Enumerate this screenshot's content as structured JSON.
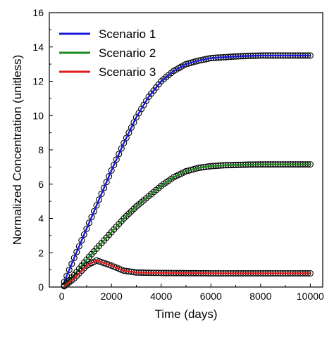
{
  "chart_data": {
    "type": "line",
    "xlabel": "Time (days)",
    "ylabel": "Normalized Concentration (unitless)",
    "xlim": [
      -500,
      10500
    ],
    "ylim": [
      0,
      16
    ],
    "xticks": [
      0,
      2000,
      4000,
      6000,
      8000,
      10000
    ],
    "yticks": [
      0,
      2,
      4,
      6,
      8,
      10,
      12,
      14,
      16
    ],
    "grid": false,
    "legend_position": "top-left",
    "marker": "open-circle",
    "marker_color": "#000000",
    "series": [
      {
        "name": "Scenario 1",
        "color": "#1a1adb",
        "x": [
          100,
          500,
          1000,
          1500,
          2000,
          2500,
          3000,
          3500,
          4000,
          4500,
          5000,
          5500,
          6000,
          6500,
          7000,
          7500,
          8000,
          8500,
          9000,
          9500,
          10000
        ],
        "values": [
          0.3,
          1.7,
          3.4,
          5.1,
          6.8,
          8.4,
          9.9,
          11.1,
          12.0,
          12.6,
          13.0,
          13.2,
          13.35,
          13.4,
          13.45,
          13.48,
          13.5,
          13.5,
          13.5,
          13.5,
          13.5
        ]
      },
      {
        "name": "Scenario 2",
        "color": "#1a8a1a",
        "x": [
          100,
          500,
          1000,
          1500,
          2000,
          2500,
          3000,
          3500,
          4000,
          4500,
          5000,
          5500,
          6000,
          6500,
          7000,
          7500,
          8000,
          8500,
          9000,
          9500,
          10000
        ],
        "values": [
          0.1,
          0.7,
          1.6,
          2.4,
          3.2,
          4.0,
          4.7,
          5.3,
          5.9,
          6.4,
          6.75,
          6.95,
          7.05,
          7.1,
          7.12,
          7.14,
          7.15,
          7.15,
          7.15,
          7.15,
          7.15
        ]
      },
      {
        "name": "Scenario 3",
        "color": "#e01a1a",
        "x": [
          100,
          500,
          1000,
          1400,
          2000,
          2500,
          3000,
          3500,
          4000,
          5000,
          6000,
          7000,
          8000,
          9000,
          10000
        ],
        "values": [
          0.05,
          0.5,
          1.25,
          1.55,
          1.25,
          0.95,
          0.85,
          0.83,
          0.82,
          0.81,
          0.8,
          0.8,
          0.8,
          0.8,
          0.8
        ]
      }
    ]
  }
}
